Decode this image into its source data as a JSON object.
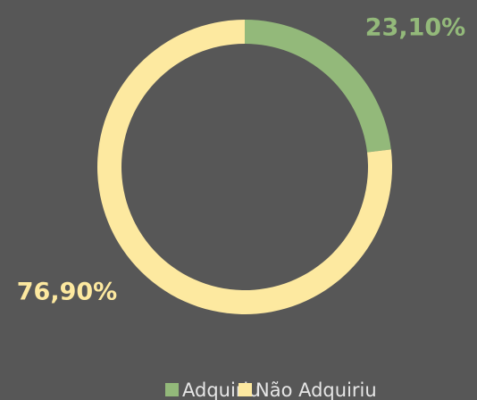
{
  "chart_data": {
    "type": "doughnut",
    "categories": [
      "Adquiriu",
      "Não Adquiriu"
    ],
    "values": [
      23.1,
      76.9
    ],
    "value_labels": [
      "23,10%",
      "76,90%"
    ],
    "colors": [
      "#93b97a",
      "#fde9a0"
    ],
    "legend": "bottom"
  }
}
